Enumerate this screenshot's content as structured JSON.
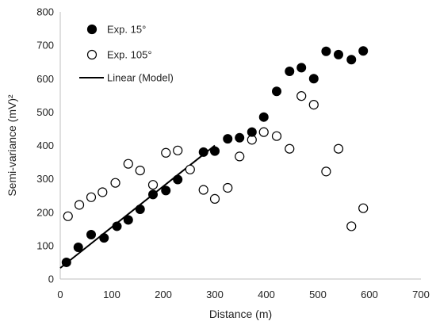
{
  "chart_data": {
    "type": "scatter",
    "title": "",
    "xlabel": "Distance (m)",
    "ylabel": "Semi-variance (mV)²",
    "xlim": [
      0,
      700
    ],
    "ylim": [
      0,
      800
    ],
    "xticks": [
      "0",
      "100",
      "200",
      "300",
      "400",
      "500",
      "600",
      "700"
    ],
    "yticks": [
      "0",
      "100",
      "200",
      "300",
      "400",
      "500",
      "600",
      "700",
      "800"
    ],
    "grid": false,
    "legend_position": "top-left",
    "series": [
      {
        "name": "Exp. 15°",
        "marker": "filled-circle",
        "color": "#000000",
        "x": [
          12,
          35,
          60,
          85,
          110,
          132,
          155,
          180,
          205,
          228,
          278,
          300,
          325,
          348,
          372,
          395,
          420,
          445,
          468,
          492,
          516,
          540,
          565,
          588
        ],
        "y": [
          50,
          95,
          133,
          123,
          158,
          177,
          209,
          253,
          265,
          298,
          380,
          383,
          420,
          423,
          440,
          485,
          562,
          622,
          633,
          600,
          682,
          672,
          657,
          683
        ]
      },
      {
        "name": "Exp. 105°",
        "marker": "open-circle",
        "color": "#000000",
        "x": [
          15,
          37,
          60,
          82,
          107,
          132,
          155,
          180,
          205,
          228,
          252,
          278,
          300,
          325,
          348,
          372,
          395,
          420,
          445,
          468,
          492,
          516,
          540,
          565,
          588
        ],
        "y": [
          188,
          222,
          245,
          260,
          288,
          345,
          325,
          282,
          378,
          385,
          328,
          267,
          240,
          273,
          367,
          417,
          440,
          428,
          390,
          548,
          522,
          322,
          390,
          158,
          212
        ]
      },
      {
        "name": "Linear (Model)",
        "type": "line",
        "color": "#000000",
        "x": [
          0,
          300
        ],
        "y": [
          33,
          400
        ]
      }
    ]
  }
}
